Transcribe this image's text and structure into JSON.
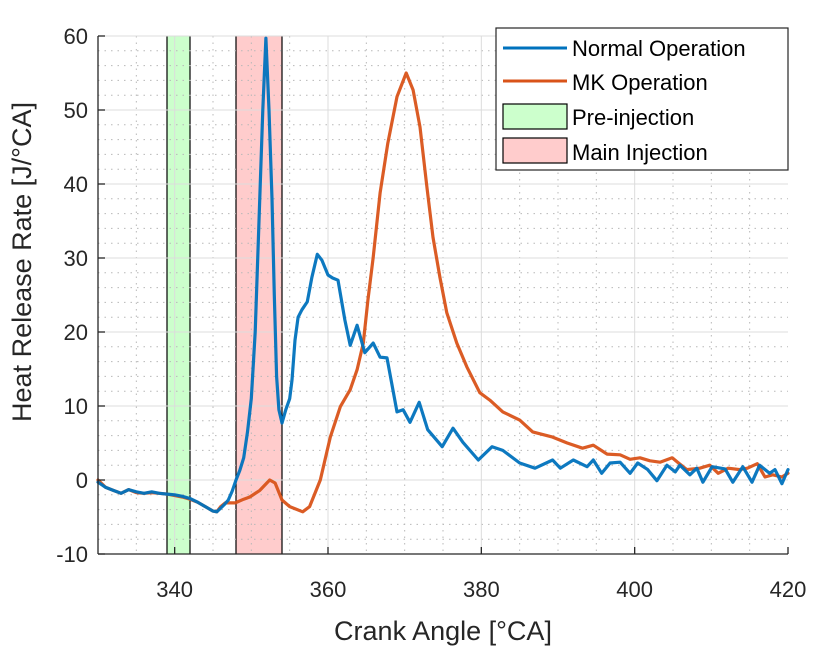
{
  "chart_data": {
    "type": "line",
    "title": "",
    "xlabel": "Crank Angle [°CA]",
    "ylabel": "Heat Release Rate [J/°CA]",
    "xlim": [
      330,
      420
    ],
    "ylim": [
      -10,
      60
    ],
    "xticks": [
      340,
      360,
      380,
      400,
      420
    ],
    "xtick_labels": [
      "340",
      "360",
      "380",
      "400",
      "420"
    ],
    "yticks": [
      -10,
      0,
      10,
      20,
      30,
      40,
      50,
      60
    ],
    "ytick_labels": [
      "-10",
      "0",
      "10",
      "20",
      "30",
      "40",
      "50",
      "60"
    ],
    "x_minor_step": 5,
    "y_minor_step": 2,
    "grid": true,
    "minor_grid": true,
    "legend_position": "top-right",
    "series": [
      {
        "name": "Normal Operation",
        "color": "#0072BD",
        "x": [
          330,
          331,
          332,
          333,
          334,
          335,
          336,
          337,
          338,
          339,
          340,
          341,
          342,
          343,
          344,
          345,
          345.5,
          346,
          346.5,
          347,
          347.5,
          348,
          348.5,
          349,
          349.5,
          350,
          350.5,
          351,
          351.5,
          351.9,
          352.3,
          352.7,
          353,
          353.3,
          353.6,
          354,
          354.5,
          355,
          355.3,
          355.7,
          356.1,
          356.6,
          357.3,
          357.9,
          358.6,
          359.2,
          360,
          360.6,
          361.3,
          362.2,
          362.9,
          363.8,
          364.8,
          365.9,
          366.8,
          367.7,
          369,
          369.8,
          370.7,
          371.9,
          373,
          374.9,
          376.3,
          377.6,
          379.6,
          381.4,
          382.8,
          385,
          387,
          389.3,
          390.3,
          392,
          393.8,
          394.6,
          395.7,
          396.8,
          398.1,
          399.4,
          400.4,
          401.7,
          402.9,
          404.2,
          405.3,
          405.9,
          407.2,
          408.1,
          408.9,
          410.1,
          411.8,
          412.8,
          414.1,
          415.3,
          416.3,
          417.6,
          418.3,
          419.2,
          420
        ],
        "y": [
          -0.3,
          -1.0,
          -1.4,
          -1.8,
          -1.3,
          -1.6,
          -1.8,
          -1.6,
          -1.8,
          -1.9,
          -2.0,
          -2.2,
          -2.5,
          -3.0,
          -3.6,
          -4.2,
          -4.3,
          -3.8,
          -3.3,
          -2.7,
          -1.5,
          0,
          1.3,
          3.0,
          6.5,
          11,
          20,
          35,
          50,
          59.7,
          50,
          38,
          25,
          14,
          9.5,
          7.7,
          9.5,
          11,
          13.5,
          18.9,
          22,
          23,
          24.1,
          27.4,
          30.5,
          29.7,
          27.7,
          27.3,
          27,
          21.6,
          18.2,
          20.9,
          17.2,
          18.5,
          16.6,
          16.5,
          9.2,
          9.5,
          7.8,
          10.5,
          6.8,
          4.5,
          7,
          5.1,
          2.7,
          4.5,
          4,
          2.3,
          1.6,
          2.7,
          1.6,
          2.7,
          1.8,
          2.7,
          0.9,
          2.3,
          2.4,
          0.9,
          2.3,
          1.4,
          -0.1,
          2,
          1.1,
          2,
          0.7,
          1.6,
          -0.3,
          1.8,
          1.5,
          -0.3,
          1.8,
          -0.3,
          2,
          0.9,
          1.4,
          -0.5,
          1.4
        ]
      },
      {
        "name": "MK Operation",
        "color": "#D95319",
        "x": [
          330,
          331,
          332,
          333,
          334,
          335,
          336,
          337,
          338,
          339,
          340,
          341,
          342,
          343,
          344,
          345,
          345.5,
          346,
          346.6,
          347.9,
          349,
          349.8,
          351.1,
          352.4,
          353.1,
          354,
          355,
          356.7,
          357.6,
          359,
          360.3,
          361.6,
          362.9,
          363.8,
          364.6,
          365.2,
          365.9,
          366.8,
          367.8,
          369,
          370.2,
          371.1,
          372,
          372.9,
          373.7,
          374.6,
          375.5,
          376.8,
          378.1,
          379.8,
          381.1,
          382.8,
          385,
          386.7,
          389.3,
          391.2,
          393.2,
          394.6,
          396.4,
          398.1,
          399.4,
          400.7,
          402,
          403.3,
          404.9,
          405.6,
          406.8,
          408.5,
          409.8,
          410.9,
          412.2,
          413.7,
          414.7,
          416,
          417,
          418,
          419.2,
          420
        ],
        "y": [
          0,
          -1.0,
          -1.4,
          -1.8,
          -1.3,
          -1.7,
          -1.8,
          -1.7,
          -1.8,
          -1.9,
          -2.1,
          -2.3,
          -2.6,
          -3.0,
          -3.6,
          -4.2,
          -4.3,
          -3.6,
          -3.1,
          -3.1,
          -2.6,
          -2.3,
          -1.4,
          0,
          -0.4,
          -2.7,
          -3.6,
          -4.3,
          -3.6,
          0,
          5.8,
          9.9,
          12.2,
          14.9,
          18.5,
          24.3,
          30.1,
          38.8,
          45.5,
          51.8,
          55,
          52.7,
          47.7,
          39.6,
          32.8,
          27.4,
          22.6,
          18.5,
          15.3,
          11.8,
          10.8,
          9.2,
          8.1,
          6.5,
          5.8,
          5,
          4.3,
          4.7,
          3.5,
          3.4,
          2.8,
          3,
          2.6,
          2.4,
          3,
          2.4,
          1.4,
          1.6,
          2,
          0.9,
          1.6,
          1.4,
          1.6,
          2.2,
          0.4,
          0.7,
          0.4,
          0.9
        ]
      }
    ],
    "regions": [
      {
        "name": "Pre-injection",
        "x_start": 339,
        "x_end": 342,
        "color": "#CCFFCC"
      },
      {
        "name": "Main Injection",
        "x_start": 348,
        "x_end": 354,
        "color": "#FFCCCC"
      }
    ],
    "legend": [
      "Normal Operation",
      "MK Operation",
      "Pre-injection",
      "Main Injection"
    ]
  }
}
